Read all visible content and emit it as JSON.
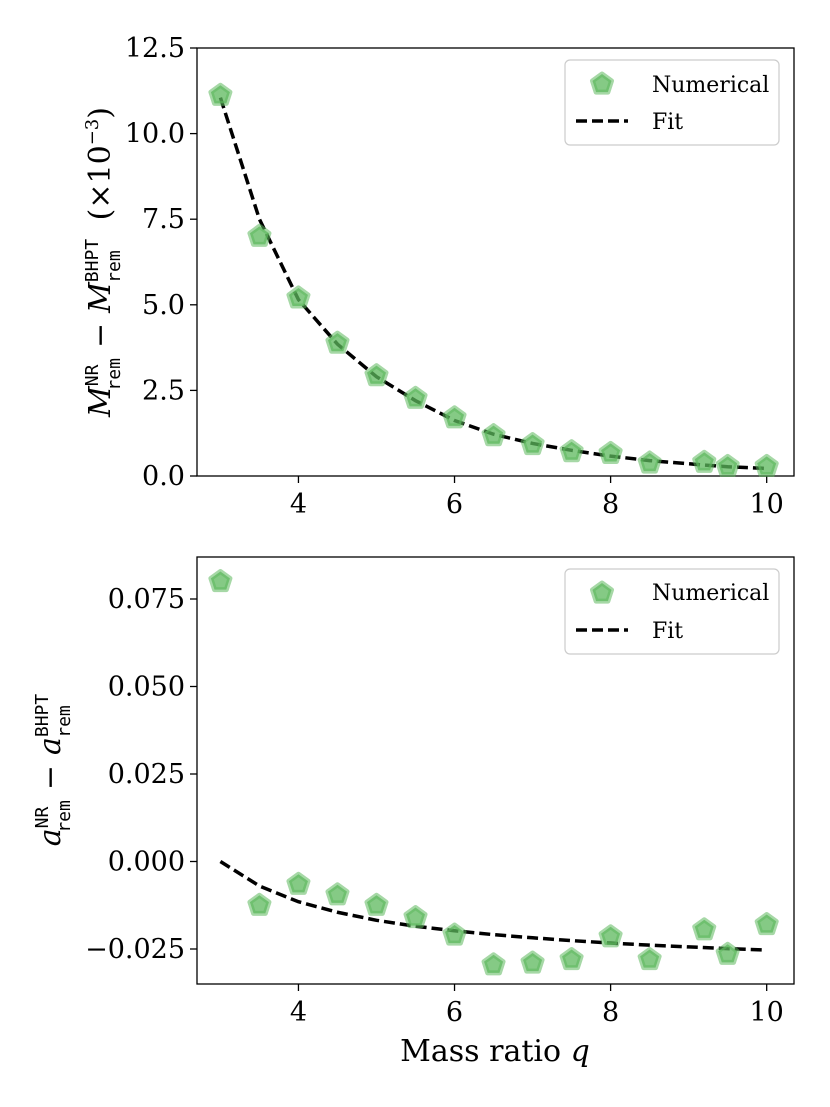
{
  "chart_data": [
    {
      "type": "scatter",
      "title": "",
      "xlabel": "",
      "ylabel_main": "M",
      "ylabel_sup_nr": "NR",
      "ylabel_sub": "rem",
      "ylabel_sup_bhpt": "BHPT",
      "ylabel_minus": "−",
      "ylabel_suffix": "(×10",
      "ylabel_exp": "−3",
      "ylabel_close": ")",
      "xlim": [
        2.7,
        10.35
      ],
      "ylim": [
        0.0,
        12.5
      ],
      "xticks": [
        4,
        6,
        8,
        10
      ],
      "xtick_labels": [
        "4",
        "6",
        "8",
        "10"
      ],
      "yticks": [
        0.0,
        2.5,
        5.0,
        7.5,
        10.0,
        12.5
      ],
      "ytick_labels": [
        "0.0",
        "2.5",
        "5.0",
        "7.5",
        "10.0",
        "12.5"
      ],
      "legend_position": "top-right",
      "series": [
        {
          "name": "Numerical",
          "kind": "markers",
          "color": "#5cb85c",
          "x": [
            3.0,
            3.5,
            4.0,
            4.5,
            5.0,
            5.5,
            6.0,
            6.5,
            7.0,
            7.5,
            8.0,
            8.5,
            9.2,
            9.5,
            10.0
          ],
          "y": [
            11.12,
            7.0,
            5.2,
            3.88,
            2.93,
            2.27,
            1.7,
            1.18,
            0.92,
            0.71,
            0.66,
            0.38,
            0.4,
            0.28,
            0.28
          ]
        },
        {
          "name": "Fit",
          "kind": "dashed-line",
          "color": "#000000",
          "x": [
            3.0,
            3.5,
            4.0,
            4.5,
            5.0,
            5.5,
            6.0,
            6.5,
            7.0,
            7.5,
            8.0,
            8.5,
            9.2,
            9.5,
            10.0
          ],
          "y": [
            11.05,
            7.5,
            5.15,
            3.85,
            2.9,
            2.2,
            1.62,
            1.22,
            0.95,
            0.75,
            0.58,
            0.45,
            0.32,
            0.27,
            0.22
          ]
        }
      ]
    },
    {
      "type": "scatter",
      "title": "",
      "xlabel": "Mass ratio",
      "xlabel_var": "q",
      "ylabel_main": "a",
      "ylabel_sup_nr": "NR",
      "ylabel_sub": "rem",
      "ylabel_sup_bhpt": "BHPT",
      "ylabel_minus": "−",
      "xlim": [
        2.7,
        10.35
      ],
      "ylim": [
        -0.035,
        0.087
      ],
      "xticks": [
        4,
        6,
        8,
        10
      ],
      "xtick_labels": [
        "4",
        "6",
        "8",
        "10"
      ],
      "yticks": [
        -0.025,
        0.0,
        0.025,
        0.05,
        0.075
      ],
      "ytick_labels": [
        "−0.025",
        "0.000",
        "0.025",
        "0.050",
        "0.075"
      ],
      "legend_position": "top-right",
      "series": [
        {
          "name": "Numerical",
          "kind": "markers",
          "color": "#5cb85c",
          "x": [
            3.0,
            3.5,
            4.0,
            4.5,
            5.0,
            5.5,
            6.0,
            6.5,
            7.0,
            7.5,
            8.0,
            8.5,
            9.2,
            9.5,
            10.0
          ],
          "y": [
            0.08,
            -0.0125,
            -0.0065,
            -0.0095,
            -0.0125,
            -0.016,
            -0.021,
            -0.0295,
            -0.029,
            -0.028,
            -0.0215,
            -0.028,
            -0.0195,
            -0.0265,
            -0.018
          ]
        },
        {
          "name": "Fit",
          "kind": "dashed-line",
          "color": "#000000",
          "x": [
            3.0,
            3.5,
            4.0,
            4.5,
            5.0,
            5.5,
            6.0,
            6.5,
            7.0,
            7.5,
            8.0,
            8.5,
            9.0,
            9.5,
            10.0
          ],
          "y": [
            0.0,
            -0.007,
            -0.0115,
            -0.0145,
            -0.0168,
            -0.0185,
            -0.0198,
            -0.0209,
            -0.0218,
            -0.0226,
            -0.0233,
            -0.0239,
            -0.0244,
            -0.0249,
            -0.0253
          ]
        }
      ]
    }
  ]
}
